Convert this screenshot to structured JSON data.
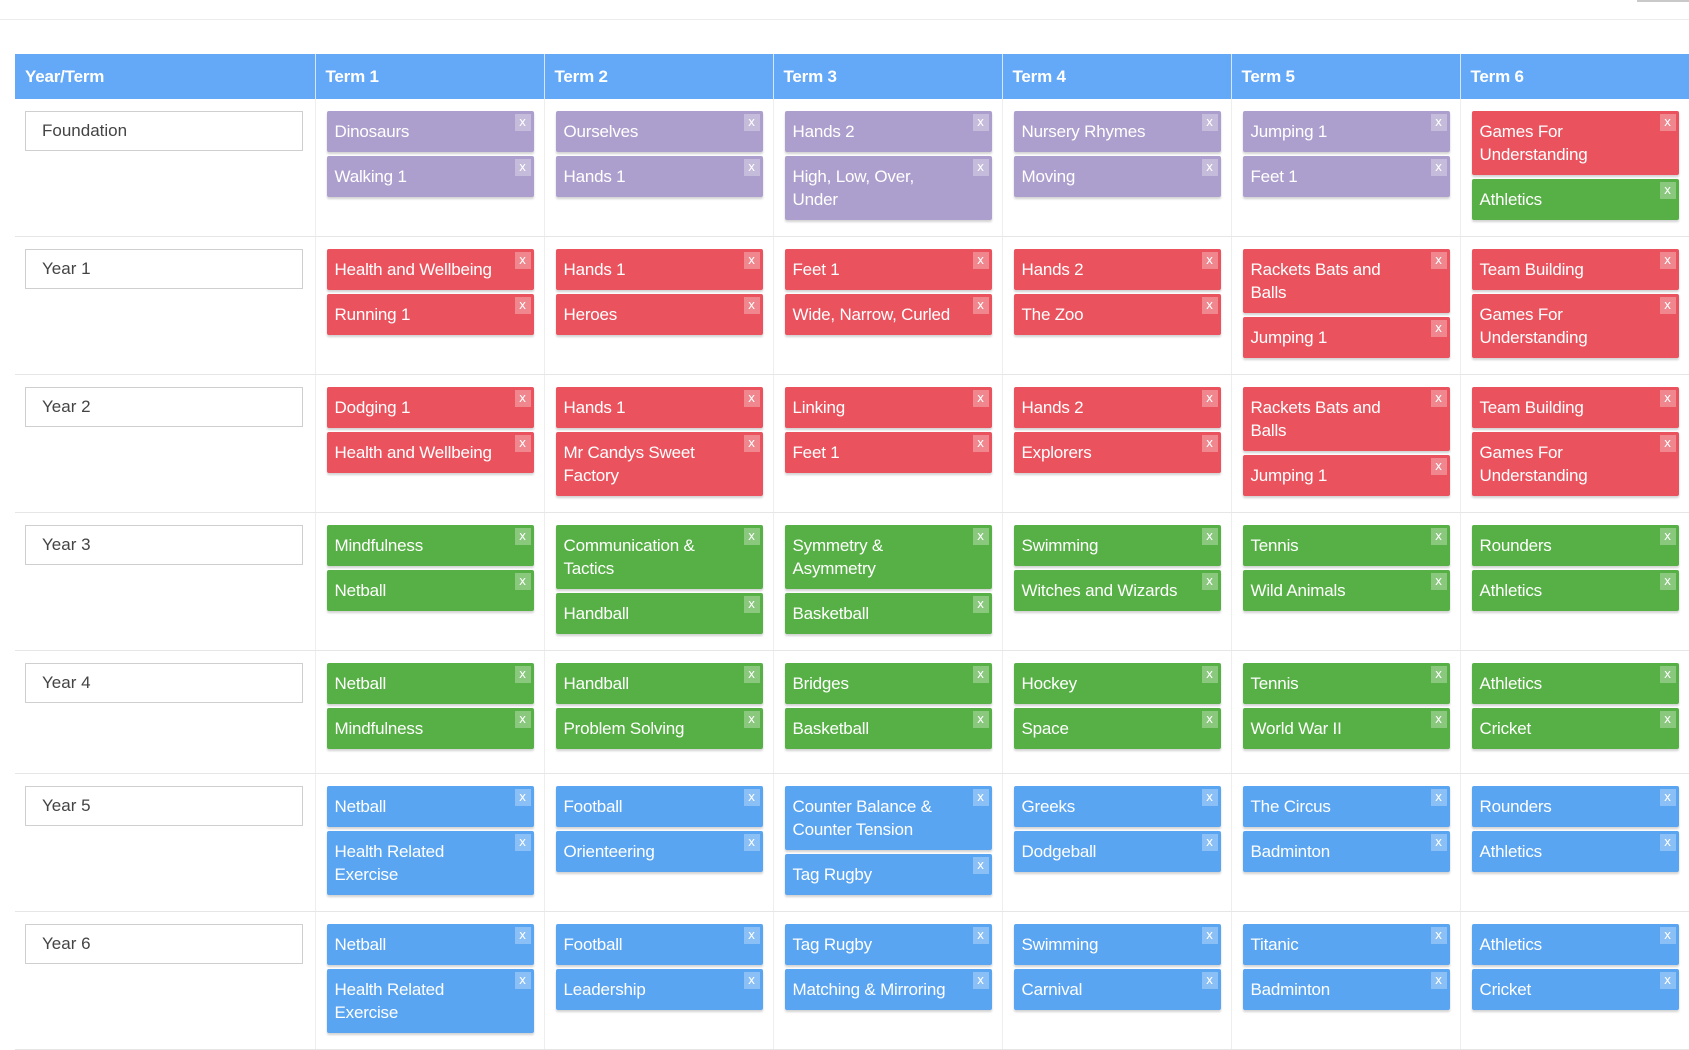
{
  "header": {
    "year_term": "Year/Term",
    "terms": [
      "Term 1",
      "Term 2",
      "Term 3",
      "Term 4",
      "Term 5",
      "Term 6"
    ]
  },
  "remove_symbol": "x",
  "colors": {
    "header": "#64a8f8",
    "purple": "#ad9fcd",
    "red": "#ea535e",
    "green": "#57b045",
    "blue": "#5aa5f2"
  },
  "rows": [
    {
      "year": "Foundation",
      "terms": [
        [
          {
            "label": "Dinosaurs",
            "color": "purple"
          },
          {
            "label": "Walking 1",
            "color": "purple"
          }
        ],
        [
          {
            "label": "Ourselves",
            "color": "purple"
          },
          {
            "label": "Hands 1",
            "color": "purple"
          }
        ],
        [
          {
            "label": "Hands 2",
            "color": "purple"
          },
          {
            "label": "High, Low, Over, Under",
            "color": "purple"
          }
        ],
        [
          {
            "label": "Nursery Rhymes",
            "color": "purple"
          },
          {
            "label": "Moving",
            "color": "purple"
          }
        ],
        [
          {
            "label": "Jumping 1",
            "color": "purple"
          },
          {
            "label": "Feet 1",
            "color": "purple"
          }
        ],
        [
          {
            "label": "Games For Understanding",
            "color": "red"
          },
          {
            "label": "Athletics",
            "color": "green"
          }
        ]
      ]
    },
    {
      "year": "Year 1",
      "terms": [
        [
          {
            "label": "Health and Wellbeing",
            "color": "red"
          },
          {
            "label": "Running 1",
            "color": "red"
          }
        ],
        [
          {
            "label": "Hands 1",
            "color": "red"
          },
          {
            "label": "Heroes",
            "color": "red"
          }
        ],
        [
          {
            "label": "Feet 1",
            "color": "red"
          },
          {
            "label": "Wide, Narrow, Curled",
            "color": "red"
          }
        ],
        [
          {
            "label": "Hands 2",
            "color": "red"
          },
          {
            "label": "The Zoo",
            "color": "red"
          }
        ],
        [
          {
            "label": "Rackets Bats and Balls",
            "color": "red"
          },
          {
            "label": "Jumping 1",
            "color": "red"
          }
        ],
        [
          {
            "label": "Team Building",
            "color": "red"
          },
          {
            "label": "Games For Understanding",
            "color": "red"
          }
        ]
      ]
    },
    {
      "year": "Year 2",
      "terms": [
        [
          {
            "label": "Dodging 1",
            "color": "red"
          },
          {
            "label": "Health and Wellbeing",
            "color": "red"
          }
        ],
        [
          {
            "label": "Hands 1",
            "color": "red"
          },
          {
            "label": "Mr Candys Sweet Factory",
            "color": "red"
          }
        ],
        [
          {
            "label": "Linking",
            "color": "red"
          },
          {
            "label": "Feet 1",
            "color": "red"
          }
        ],
        [
          {
            "label": "Hands 2",
            "color": "red"
          },
          {
            "label": "Explorers",
            "color": "red"
          }
        ],
        [
          {
            "label": "Rackets Bats and Balls",
            "color": "red"
          },
          {
            "label": "Jumping 1",
            "color": "red"
          }
        ],
        [
          {
            "label": "Team Building",
            "color": "red"
          },
          {
            "label": "Games For Understanding",
            "color": "red"
          }
        ]
      ]
    },
    {
      "year": "Year 3",
      "terms": [
        [
          {
            "label": "Mindfulness",
            "color": "green"
          },
          {
            "label": "Netball",
            "color": "green"
          }
        ],
        [
          {
            "label": "Communication & Tactics",
            "color": "green"
          },
          {
            "label": "Handball",
            "color": "green"
          }
        ],
        [
          {
            "label": "Symmetry & Asymmetry",
            "color": "green"
          },
          {
            "label": "Basketball",
            "color": "green"
          }
        ],
        [
          {
            "label": "Swimming",
            "color": "green"
          },
          {
            "label": "Witches and Wizards",
            "color": "green"
          }
        ],
        [
          {
            "label": "Tennis",
            "color": "green"
          },
          {
            "label": "Wild Animals",
            "color": "green"
          }
        ],
        [
          {
            "label": "Rounders",
            "color": "green"
          },
          {
            "label": "Athletics",
            "color": "green"
          }
        ]
      ]
    },
    {
      "year": "Year 4",
      "terms": [
        [
          {
            "label": "Netball",
            "color": "green"
          },
          {
            "label": "Mindfulness",
            "color": "green"
          }
        ],
        [
          {
            "label": "Handball",
            "color": "green"
          },
          {
            "label": "Problem Solving",
            "color": "green"
          }
        ],
        [
          {
            "label": "Bridges",
            "color": "green"
          },
          {
            "label": "Basketball",
            "color": "green"
          }
        ],
        [
          {
            "label": "Hockey",
            "color": "green"
          },
          {
            "label": "Space",
            "color": "green"
          }
        ],
        [
          {
            "label": "Tennis",
            "color": "green"
          },
          {
            "label": "World War II",
            "color": "green"
          }
        ],
        [
          {
            "label": "Athletics",
            "color": "green"
          },
          {
            "label": "Cricket",
            "color": "green"
          }
        ]
      ]
    },
    {
      "year": "Year 5",
      "terms": [
        [
          {
            "label": "Netball",
            "color": "blue"
          },
          {
            "label": "Health Related Exercise",
            "color": "blue"
          }
        ],
        [
          {
            "label": "Football",
            "color": "blue"
          },
          {
            "label": "Orienteering",
            "color": "blue"
          }
        ],
        [
          {
            "label": "Counter Balance & Counter Tension",
            "color": "blue"
          },
          {
            "label": "Tag Rugby",
            "color": "blue"
          }
        ],
        [
          {
            "label": "Greeks",
            "color": "blue"
          },
          {
            "label": "Dodgeball",
            "color": "blue"
          }
        ],
        [
          {
            "label": "The Circus",
            "color": "blue"
          },
          {
            "label": "Badminton",
            "color": "blue"
          }
        ],
        [
          {
            "label": "Rounders",
            "color": "blue"
          },
          {
            "label": "Athletics",
            "color": "blue"
          }
        ]
      ]
    },
    {
      "year": "Year 6",
      "terms": [
        [
          {
            "label": "Netball",
            "color": "blue"
          },
          {
            "label": "Health Related Exercise",
            "color": "blue"
          }
        ],
        [
          {
            "label": "Football",
            "color": "blue"
          },
          {
            "label": "Leadership",
            "color": "blue"
          }
        ],
        [
          {
            "label": "Tag Rugby",
            "color": "blue"
          },
          {
            "label": "Matching & Mirroring",
            "color": "blue"
          }
        ],
        [
          {
            "label": "Swimming",
            "color": "blue"
          },
          {
            "label": "Carnival",
            "color": "blue"
          }
        ],
        [
          {
            "label": "Titanic",
            "color": "blue"
          },
          {
            "label": "Badminton",
            "color": "blue"
          }
        ],
        [
          {
            "label": "Athletics",
            "color": "blue"
          },
          {
            "label": "Cricket",
            "color": "blue"
          }
        ]
      ]
    }
  ]
}
